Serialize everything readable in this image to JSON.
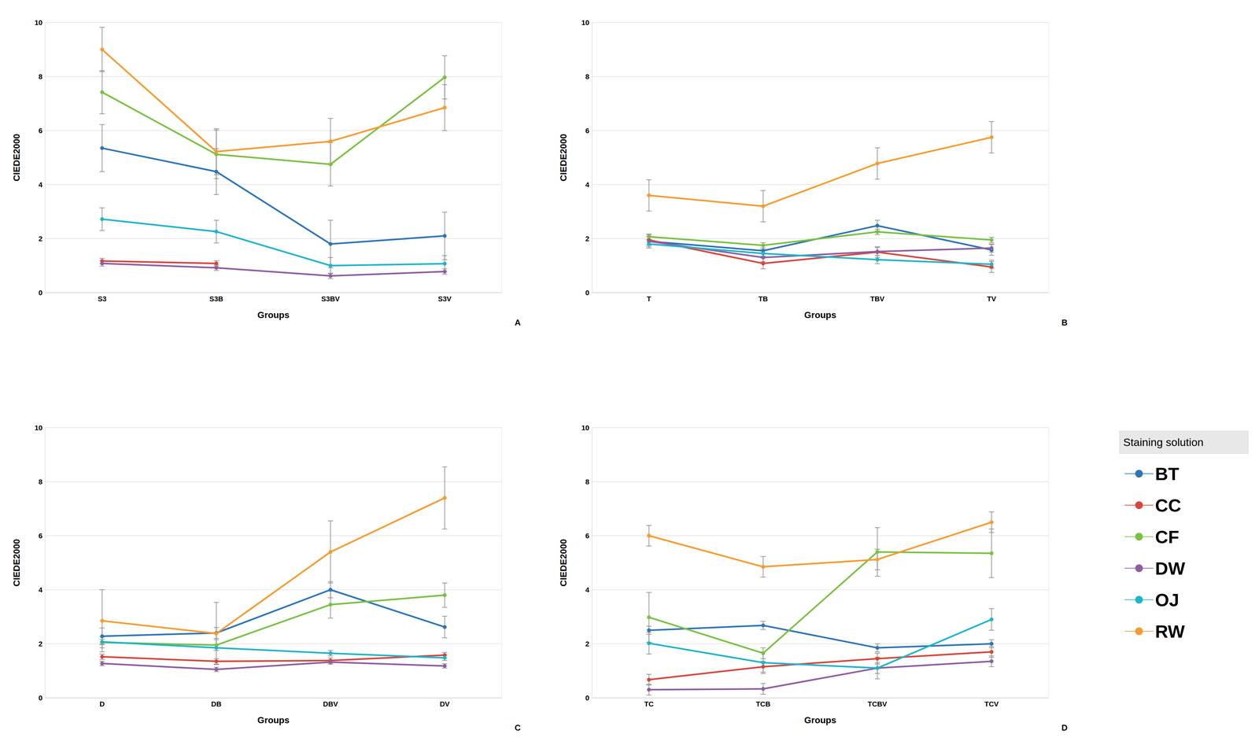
{
  "legend": "right",
  "legend_title": "Staining solution",
  "chart_data": [
    {
      "type": "line",
      "annotation": "A",
      "x_label": "Groups",
      "y_label": "CIEDE2000",
      "marker": "circle",
      "grid": true,
      "categories": [
        "S3",
        "S3B",
        "S3BV",
        "S3V"
      ],
      "ylim": [
        0,
        10
      ],
      "yticks": [
        0,
        2,
        4,
        6,
        8,
        10
      ],
      "series": [
        {
          "name": "BT",
          "color": "#2e75b6",
          "values": [
            5.35,
            4.48,
            1.8,
            2.1
          ],
          "errors": [
            0.87,
            0.85,
            0.88,
            0.88
          ]
        },
        {
          "name": "CC",
          "color": "#d9453c",
          "values": [
            1.17,
            1.08,
            null,
            null
          ],
          "errors": [
            0.1,
            0.1,
            null,
            null
          ]
        },
        {
          "name": "CF",
          "color": "#7ac142",
          "values": [
            7.42,
            5.12,
            4.75,
            7.97
          ],
          "errors": [
            0.8,
            0.9,
            0.8,
            0.8
          ]
        },
        {
          "name": "DW",
          "color": "#8e5ea2",
          "values": [
            1.08,
            0.92,
            0.62,
            0.78
          ],
          "errors": [
            0.1,
            0.1,
            0.1,
            0.1
          ]
        },
        {
          "name": "OJ",
          "color": "#1fb5c9",
          "values": [
            2.72,
            2.26,
            1.0,
            1.07
          ],
          "errors": [
            0.42,
            0.42,
            0.3,
            0.3
          ]
        },
        {
          "name": "RW",
          "color": "#f79b2e",
          "values": [
            9.0,
            5.22,
            5.6,
            6.85
          ],
          "errors": [
            0.82,
            0.85,
            0.85,
            0.85
          ]
        }
      ]
    },
    {
      "type": "line",
      "annotation": "B",
      "x_label": "Groups",
      "y_label": "CIEDE2000",
      "marker": "circle",
      "grid": true,
      "categories": [
        "T",
        "TB",
        "TBV",
        "TV"
      ],
      "ylim": [
        0,
        10
      ],
      "yticks": [
        0,
        2,
        4,
        6,
        8,
        10
      ],
      "series": [
        {
          "name": "BT",
          "color": "#2e75b6",
          "values": [
            1.9,
            1.55,
            2.48,
            1.58
          ],
          "errors": [
            0.2,
            0.2,
            0.2,
            0.2
          ]
        },
        {
          "name": "CC",
          "color": "#d9453c",
          "values": [
            1.95,
            1.08,
            1.5,
            0.95
          ],
          "errors": [
            0.2,
            0.2,
            0.2,
            0.2
          ]
        },
        {
          "name": "CF",
          "color": "#7ac142",
          "values": [
            2.07,
            1.75,
            2.25,
            1.95
          ],
          "errors": [
            0.1,
            0.1,
            0.1,
            0.1
          ]
        },
        {
          "name": "DW",
          "color": "#8e5ea2",
          "values": [
            1.9,
            1.3,
            1.52,
            1.65
          ],
          "errors": [
            0.15,
            0.15,
            0.15,
            0.15
          ]
        },
        {
          "name": "OJ",
          "color": "#1fb5c9",
          "values": [
            1.8,
            1.45,
            1.22,
            1.05
          ],
          "errors": [
            0.15,
            0.15,
            0.15,
            0.15
          ]
        },
        {
          "name": "RW",
          "color": "#f79b2e",
          "values": [
            3.6,
            3.2,
            4.78,
            5.75
          ],
          "errors": [
            0.58,
            0.58,
            0.58,
            0.58
          ]
        }
      ]
    },
    {
      "type": "line",
      "annotation": "C",
      "x_label": "Groups",
      "y_label": "CIEDE2000",
      "marker": "circle",
      "grid": true,
      "categories": [
        "D",
        "DB",
        "DBV",
        "DV"
      ],
      "ylim": [
        0,
        10
      ],
      "yticks": [
        0,
        2,
        4,
        6,
        8,
        10
      ],
      "series": [
        {
          "name": "BT",
          "color": "#2e75b6",
          "values": [
            2.28,
            2.4,
            4.0,
            2.62
          ],
          "errors": [
            0.3,
            0.2,
            0.3,
            0.4
          ]
        },
        {
          "name": "CC",
          "color": "#d9453c",
          "values": [
            1.52,
            1.35,
            1.38,
            1.58
          ],
          "errors": [
            0.1,
            0.1,
            0.1,
            0.1
          ]
        },
        {
          "name": "CF",
          "color": "#7ac142",
          "values": [
            2.05,
            1.95,
            3.45,
            3.8
          ],
          "errors": [
            0.2,
            0.2,
            0.5,
            0.45
          ]
        },
        {
          "name": "DW",
          "color": "#8e5ea2",
          "values": [
            1.27,
            1.05,
            1.32,
            1.18
          ],
          "errors": [
            0.08,
            0.08,
            0.08,
            0.08
          ]
        },
        {
          "name": "OJ",
          "color": "#1fb5c9",
          "values": [
            2.07,
            1.85,
            1.65,
            1.48
          ],
          "errors": [
            0.1,
            0.1,
            0.1,
            0.1
          ]
        },
        {
          "name": "RW",
          "color": "#f79b2e",
          "values": [
            2.85,
            2.38,
            5.4,
            7.4
          ],
          "errors": [
            1.15,
            1.15,
            1.15,
            1.15
          ]
        }
      ]
    },
    {
      "type": "line",
      "annotation": "D",
      "x_label": "Groups",
      "y_label": "CIEDE2000",
      "marker": "circle",
      "grid": true,
      "categories": [
        "TC",
        "TCB",
        "TCBV",
        "TCV"
      ],
      "ylim": [
        0,
        10
      ],
      "yticks": [
        0,
        2,
        4,
        6,
        8,
        10
      ],
      "series": [
        {
          "name": "BT",
          "color": "#2e75b6",
          "values": [
            2.5,
            2.68,
            1.85,
            2.0
          ],
          "errors": [
            0.15,
            0.15,
            0.15,
            0.15
          ]
        },
        {
          "name": "CC",
          "color": "#d9453c",
          "values": [
            0.67,
            1.15,
            1.45,
            1.7
          ],
          "errors": [
            0.2,
            0.2,
            0.2,
            0.2
          ]
        },
        {
          "name": "CF",
          "color": "#7ac142",
          "values": [
            2.98,
            1.65,
            5.4,
            5.35
          ],
          "errors": [
            0.92,
            0.2,
            0.9,
            0.9
          ]
        },
        {
          "name": "DW",
          "color": "#8e5ea2",
          "values": [
            0.3,
            0.33,
            1.1,
            1.35
          ],
          "errors": [
            0.2,
            0.2,
            0.2,
            0.2
          ]
        },
        {
          "name": "OJ",
          "color": "#1fb5c9",
          "values": [
            2.02,
            1.3,
            1.1,
            2.9
          ],
          "errors": [
            0.4,
            0.4,
            0.4,
            0.4
          ]
        },
        {
          "name": "RW",
          "color": "#f79b2e",
          "values": [
            6.0,
            4.85,
            5.12,
            6.5
          ],
          "errors": [
            0.38,
            0.38,
            0.38,
            0.38
          ]
        }
      ]
    }
  ]
}
